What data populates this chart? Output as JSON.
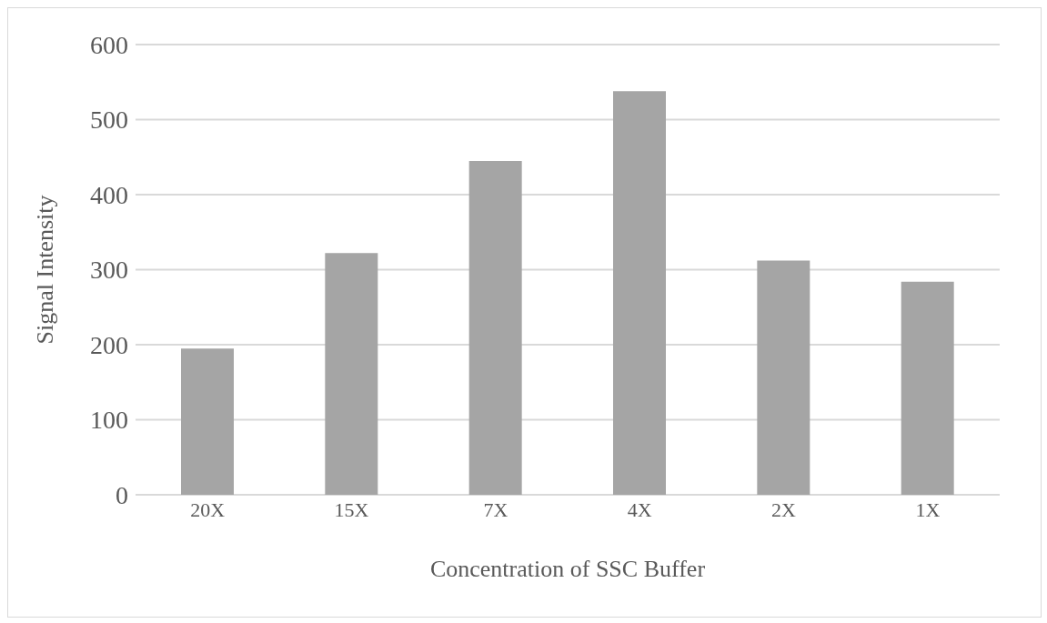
{
  "chart_data": {
    "type": "bar",
    "xlabel": "Concentration of SSC Buffer",
    "ylabel": "Signal Intensity",
    "categories": [
      "20X",
      "15X",
      "7X",
      "4X",
      "2X",
      "1X"
    ],
    "values": [
      195,
      322,
      445,
      538,
      312,
      284
    ],
    "color": "#a5a5a5",
    "ylim": [
      0,
      600
    ],
    "yticks": [
      0,
      100,
      200,
      300,
      400,
      500,
      600
    ],
    "grid": "y"
  }
}
